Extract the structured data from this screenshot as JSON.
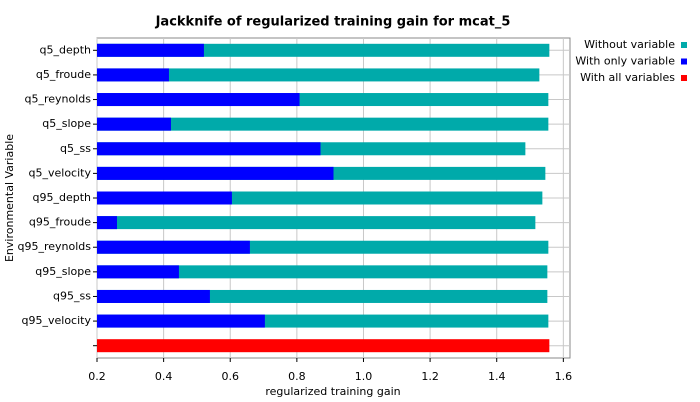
{
  "chart_data": {
    "type": "bar",
    "orientation": "horizontal",
    "title": "Jackknife of regularized training gain for mcat_5",
    "x_label": "regularized training gain",
    "y_label": "Environmental Variable",
    "categories": [
      "q5_depth",
      "q5_froude",
      "q5_reynolds",
      "q5_slope",
      "q5_ss",
      "q5_velocity",
      "q95_depth",
      "q95_froude",
      "q95_reynolds",
      "q95_slope",
      "q95_ss",
      "q95_velocity",
      null
    ],
    "series": [
      {
        "name": "Without variable",
        "color": "#00aaaa",
        "values": [
          1.558,
          1.528,
          1.555,
          1.555,
          1.486,
          1.546,
          1.537,
          1.516,
          1.555,
          1.552,
          1.552,
          1.555,
          null
        ]
      },
      {
        "name": "With only variable",
        "color": "#0000ff",
        "values": [
          0.521,
          0.416,
          0.808,
          0.422,
          0.871,
          0.91,
          0.605,
          0.26,
          0.659,
          0.446,
          0.539,
          0.704,
          null
        ]
      },
      {
        "name": "With all variables",
        "color": "#ff0000",
        "values": [
          null,
          null,
          null,
          null,
          null,
          null,
          null,
          null,
          null,
          null,
          null,
          null,
          1.558
        ]
      }
    ],
    "xlim": [
      0.2,
      1.62
    ],
    "xticks": [
      0.2,
      0.4,
      0.6,
      0.8,
      {
        "value": 1,
        "label": "1.0"
      },
      1.2,
      1.4,
      1.6
    ],
    "grid": true,
    "legend": "right"
  }
}
